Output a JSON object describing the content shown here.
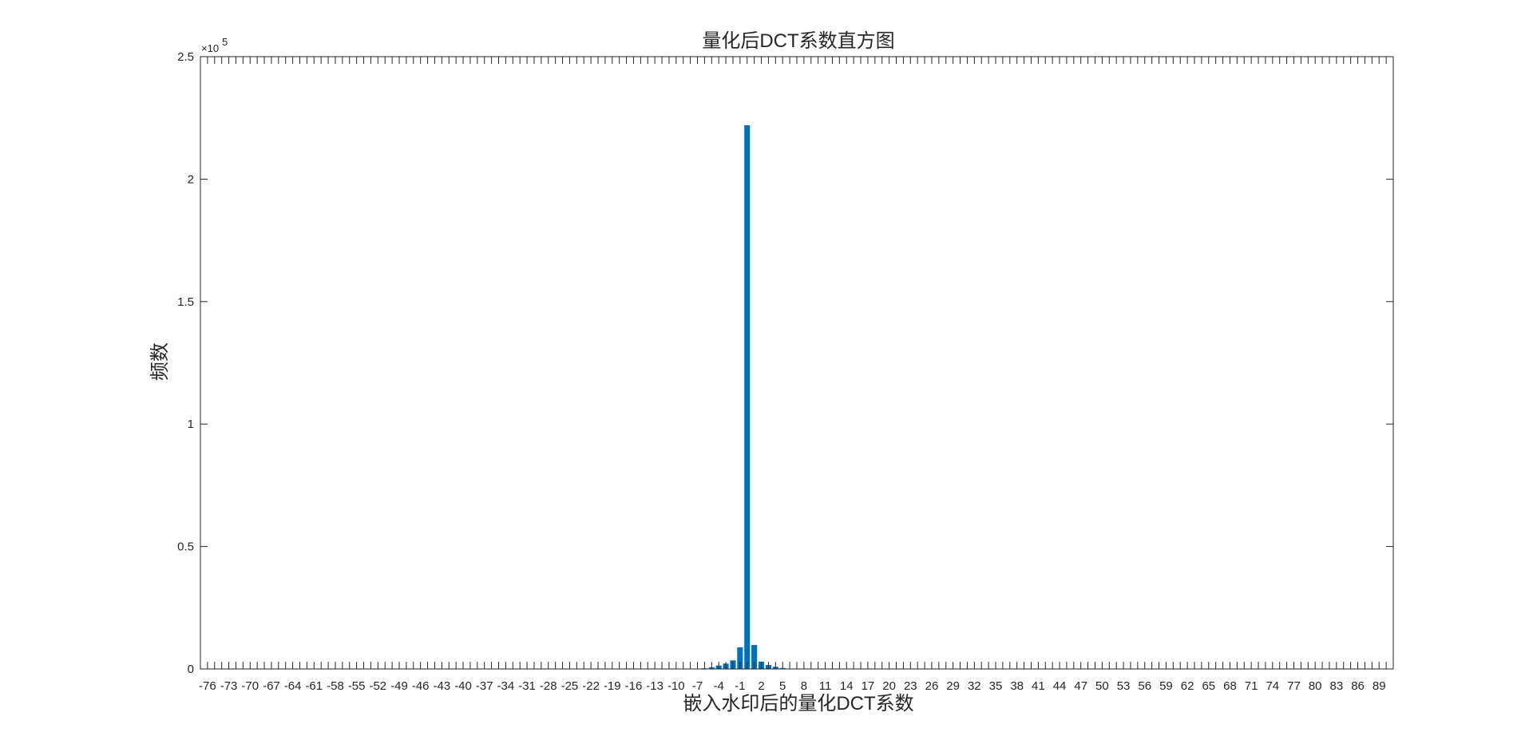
{
  "chart_data": {
    "type": "bar",
    "title": "量化后DCT系数直方图",
    "xlabel": "嵌入水印后的量化DCT系数",
    "ylabel": "频数",
    "y_exponent_label": "×10",
    "y_exponent_power": "5",
    "y_tick_labels": [
      "0",
      "0.5",
      "1",
      "1.5",
      "2",
      "2.5"
    ],
    "ylim": [
      0,
      250000
    ],
    "xlim": [
      -77,
      91
    ],
    "x_tick_step": 1,
    "x_tick_label_step": 3,
    "x_tick_label_start": -76,
    "x_tick_label_end": 89,
    "bar_color": "#0072BD",
    "grid": false,
    "x": [
      -7,
      -6,
      -5,
      -4,
      -3,
      -2,
      -1,
      0,
      1,
      2,
      3,
      4,
      5,
      6
    ],
    "values": [
      100,
      300,
      700,
      1400,
      2200,
      3500,
      8800,
      222000,
      9800,
      3000,
      1600,
      900,
      400,
      150
    ]
  }
}
